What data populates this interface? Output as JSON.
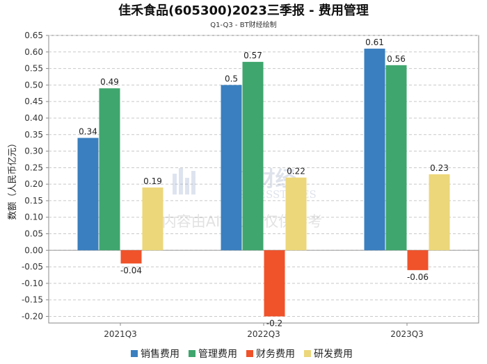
{
  "chart_data": {
    "type": "bar",
    "title": "佳禾食品(605300)2023三季报 - 费用管理",
    "subtitle": "Q1-Q3 - BT财经绘制",
    "ylabel": "数额（人民币亿元）",
    "xlabel": "",
    "ylim": [
      -0.22,
      0.65
    ],
    "yticks": [
      -0.2,
      -0.15,
      -0.1,
      -0.05,
      0.0,
      0.05,
      0.1,
      0.15,
      0.2,
      0.25,
      0.3,
      0.35,
      0.4,
      0.45,
      0.5,
      0.55,
      0.6,
      0.65
    ],
    "grid": true,
    "legend_position": "bottom",
    "categories": [
      "2021Q3",
      "2022Q3",
      "2023Q3"
    ],
    "series": [
      {
        "name": "销售费用",
        "color": "#3a7fbf",
        "values": [
          0.34,
          0.5,
          0.61
        ],
        "labels": [
          "0.34",
          "0.5",
          "0.61"
        ]
      },
      {
        "name": "管理费用",
        "color": "#3fa66e",
        "values": [
          0.49,
          0.57,
          0.56
        ],
        "labels": [
          "0.49",
          "0.57",
          "0.56"
        ]
      },
      {
        "name": "财务费用",
        "color": "#f0522a",
        "values": [
          -0.04,
          -0.2,
          -0.06
        ],
        "labels": [
          "-0.04",
          "-0.2",
          "-0.06"
        ]
      },
      {
        "name": "研发费用",
        "color": "#ecd77a",
        "values": [
          0.19,
          0.22,
          0.23
        ],
        "labels": [
          "0.19",
          "0.22",
          "0.23"
        ]
      }
    ]
  },
  "watermark": {
    "brand": "BT财经",
    "brand_en": "BUSINESSTIMES",
    "notice": "内容由AI生成，仅供参考"
  }
}
